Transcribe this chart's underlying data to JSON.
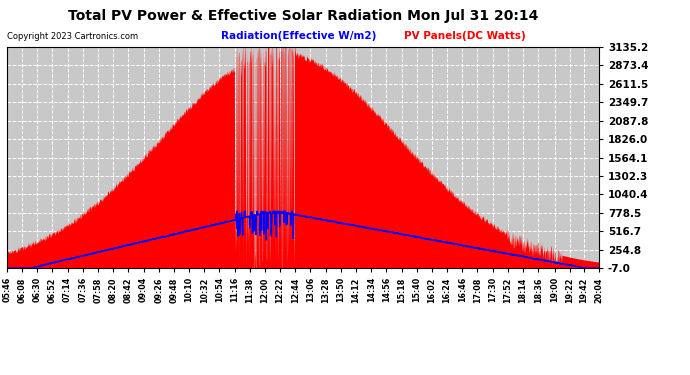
{
  "title": "Total PV Power & Effective Solar Radiation Mon Jul 31 20:14",
  "copyright": "Copyright 2023 Cartronics.com",
  "legend_radiation": "Radiation(Effective W/m2)",
  "legend_pv": "PV Panels(DC Watts)",
  "yticks": [
    3135.2,
    2873.4,
    2611.5,
    2349.7,
    2087.8,
    1826.0,
    1564.1,
    1302.3,
    1040.4,
    778.5,
    516.7,
    254.8,
    -7.0
  ],
  "ymin": -7.0,
  "ymax": 3135.2,
  "bg_color": "#ffffff",
  "plot_bg_color": "#c8c8c8",
  "title_color": "#000000",
  "radiation_color": "#0000ff",
  "pv_color": "#ff0000",
  "grid_color": "#ffffff",
  "grid_style": "--",
  "xtick_labels": [
    "05:46",
    "06:08",
    "06:30",
    "06:52",
    "07:14",
    "07:36",
    "07:58",
    "08:20",
    "08:42",
    "09:04",
    "09:26",
    "09:48",
    "10:10",
    "10:32",
    "10:54",
    "11:16",
    "11:38",
    "12:00",
    "12:22",
    "12:44",
    "13:06",
    "13:28",
    "13:50",
    "14:12",
    "14:34",
    "14:56",
    "15:18",
    "15:40",
    "16:02",
    "16:24",
    "16:46",
    "17:08",
    "17:30",
    "17:52",
    "18:14",
    "18:36",
    "19:00",
    "19:22",
    "19:42",
    "20:04"
  ]
}
